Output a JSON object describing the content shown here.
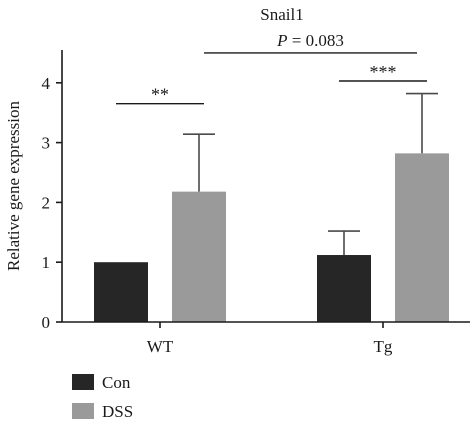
{
  "chart_data": {
    "type": "bar",
    "title": "Snail1",
    "xlabel": "",
    "ylabel": "Relative gene expression",
    "ylim": [
      0,
      4.5
    ],
    "yticks": [
      0,
      1,
      2,
      3,
      4
    ],
    "categories": [
      "WT",
      "Tg"
    ],
    "series": [
      {
        "name": "Con",
        "color": "#262626",
        "values": [
          1.0,
          1.12
        ],
        "error_upper": [
          1.0,
          1.52
        ]
      },
      {
        "name": "DSS",
        "color": "#9a9a9a",
        "values": [
          2.18,
          2.82
        ],
        "error_upper": [
          3.14,
          3.82
        ]
      }
    ],
    "annotations": [
      {
        "label": "**",
        "type": "within-group",
        "group": "WT",
        "level": 3.65
      },
      {
        "label": "***",
        "type": "within-group",
        "group": "Tg",
        "level": 4.03
      },
      {
        "label": "P = 0.083",
        "type": "between-group",
        "from": "WT DSS",
        "to": "Tg DSS",
        "level": 4.5
      }
    ],
    "legend": {
      "position": "bottom-left",
      "entries": [
        "Con",
        "DSS"
      ]
    },
    "grid": false
  }
}
